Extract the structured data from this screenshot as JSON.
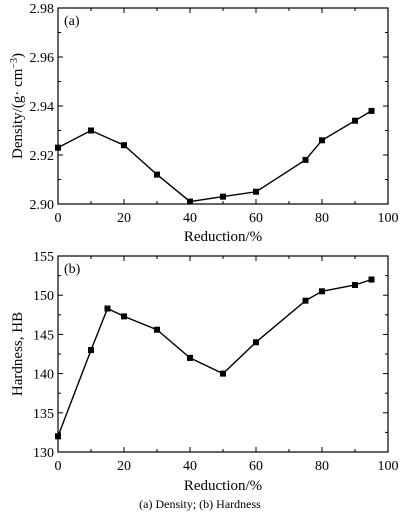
{
  "caption": "(a) Density; (b) Hardness",
  "chart_data": [
    {
      "type": "line",
      "panel_label": "(a)",
      "xlabel": "Reduction/%",
      "ylabel_main": "Density/(g· cm",
      "ylabel_sup": "−3",
      "ylabel_tail": ")",
      "xlim": [
        0,
        100
      ],
      "ylim": [
        2.9,
        2.98
      ],
      "x_ticks": [
        0,
        20,
        40,
        60,
        80,
        100
      ],
      "x_tick_labels": [
        "0",
        "20",
        "40",
        "60",
        "80",
        "100"
      ],
      "y_ticks": [
        2.9,
        2.92,
        2.94,
        2.96,
        2.98
      ],
      "y_tick_labels": [
        "2.90",
        "2.92",
        "2.94",
        "2.96",
        "2.98"
      ],
      "grid": false,
      "marker": "square",
      "x": [
        0,
        10,
        20,
        30,
        40,
        50,
        60,
        75,
        80,
        90,
        95
      ],
      "y": [
        2.923,
        2.93,
        2.924,
        2.912,
        2.901,
        2.903,
        2.905,
        2.918,
        2.926,
        2.934,
        2.938
      ]
    },
    {
      "type": "line",
      "panel_label": "(b)",
      "xlabel": "Reduction/%",
      "ylabel_main": "Hardness, HB",
      "xlim": [
        0,
        100
      ],
      "ylim": [
        130,
        155
      ],
      "x_ticks": [
        0,
        20,
        40,
        60,
        80,
        100
      ],
      "x_tick_labels": [
        "0",
        "20",
        "40",
        "60",
        "80",
        "100"
      ],
      "y_ticks": [
        130,
        135,
        140,
        145,
        150,
        155
      ],
      "y_tick_labels": [
        "130",
        "135",
        "140",
        "145",
        "150",
        "155"
      ],
      "grid": false,
      "marker": "square",
      "x": [
        0,
        10,
        15,
        20,
        30,
        40,
        50,
        60,
        75,
        80,
        90,
        95
      ],
      "y": [
        132.0,
        143.0,
        148.3,
        147.3,
        145.6,
        142.0,
        140.0,
        144.0,
        149.3,
        150.5,
        151.3,
        152.0
      ]
    }
  ]
}
